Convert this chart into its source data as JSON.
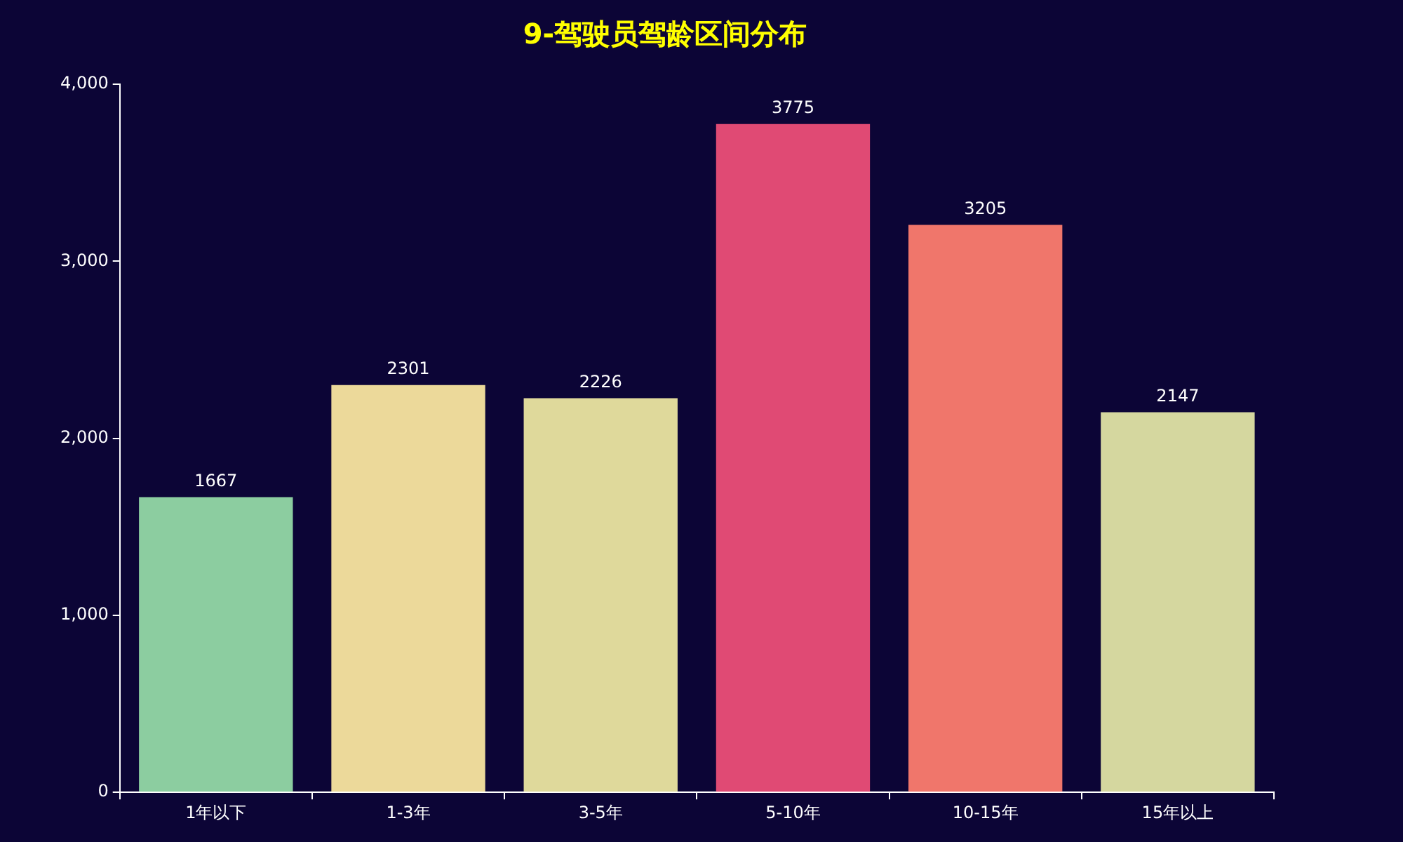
{
  "chart_data": {
    "type": "bar",
    "title": "9-驾驶员驾龄区间分布",
    "categories": [
      "1年以下",
      "1-3年",
      "3-5年",
      "5-10年",
      "10-15年",
      "15年以上"
    ],
    "values": [
      1667,
      2301,
      2226,
      3775,
      3205,
      2147
    ],
    "colors": [
      "#8ccda0",
      "#ecd99a",
      "#dfd99b",
      "#e04a74",
      "#f0766b",
      "#d5d79f"
    ],
    "ylim": [
      0,
      4000
    ],
    "yticks": [
      0,
      {
        "value": 1000,
        "label": "1,000"
      },
      {
        "value": 2000,
        "label": "2,000"
      },
      {
        "value": 3000,
        "label": "3,000"
      },
      {
        "value": 4000,
        "label": "4,000"
      }
    ],
    "grid": false,
    "legend": false,
    "data_labels": true
  }
}
